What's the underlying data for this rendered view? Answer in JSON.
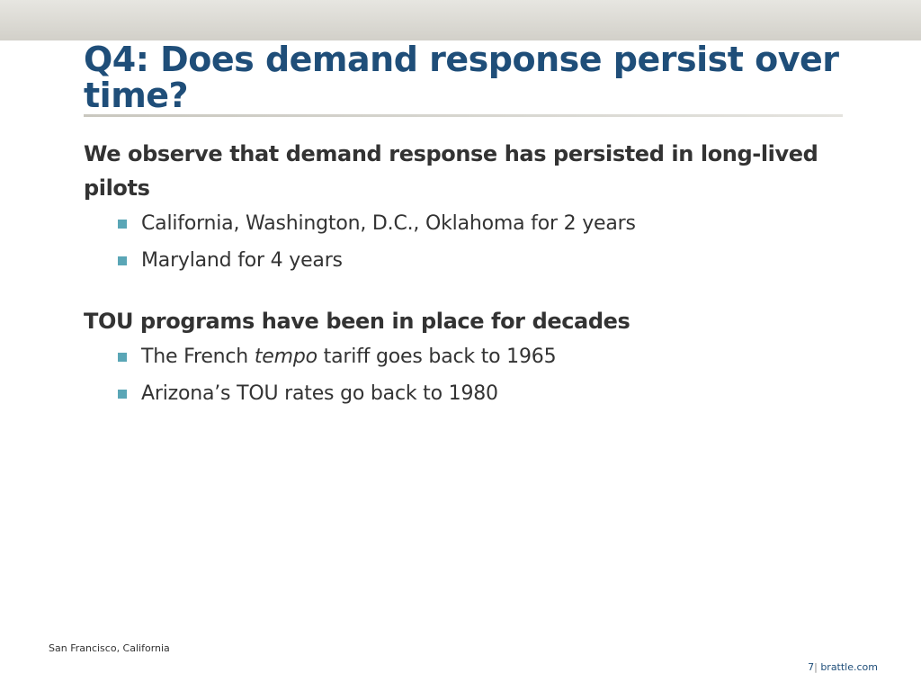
{
  "slide": {
    "title": "Q4: Does demand response persist over time?",
    "sections": [
      {
        "heading": "We observe that demand response has persisted in long-lived pilots",
        "bullets": [
          {
            "text": "California, Washington, D.C., Oklahoma for 2 years"
          },
          {
            "text": "Maryland for 4 years"
          }
        ]
      },
      {
        "heading": "TOU programs have been in place for decades",
        "bullets": [
          {
            "before": "The French ",
            "emph": "tempo",
            "after": " tariff goes back to 1965"
          },
          {
            "text": "Arizona’s TOU rates go back to 1980"
          }
        ]
      }
    ]
  },
  "footer": {
    "location": "San Francisco, California",
    "page_number": "7",
    "separator": "|",
    "site": "brattle.com"
  },
  "colors": {
    "title": "#1f4e79",
    "body_text": "#333333",
    "bullet": "#5aa6b6",
    "top_band": "#d2d0c9"
  }
}
